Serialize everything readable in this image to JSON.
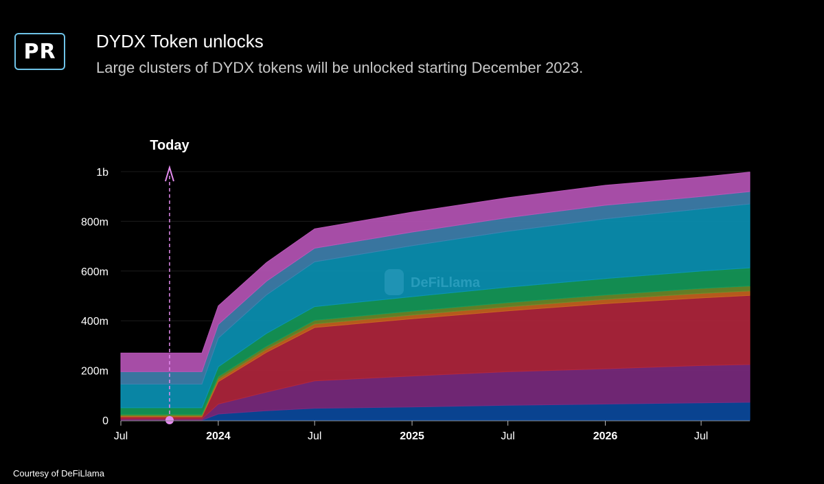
{
  "header": {
    "logo_text": "PR",
    "title": "DYDX Token unlocks",
    "subtitle": "Large clusters of DYDX tokens will be unlocked starting December 2023."
  },
  "footer": {
    "credit": "Courtesy of DeFiLlama"
  },
  "watermark": {
    "text": "DeFiLlama",
    "icon": "llama-icon"
  },
  "today_marker": {
    "label": "Today",
    "date": "2023-10-01",
    "color": "#e58cf0"
  },
  "colors": {
    "background": "#000000",
    "gridline": "#1c1c1c",
    "text": "#ffffff"
  },
  "chart_data": {
    "type": "area",
    "stacked": true,
    "x_axis": {
      "type": "date",
      "range": [
        "2023-07-01",
        "2026-10-01"
      ],
      "ticks": [
        {
          "date": "2023-07-01",
          "label": "Jul",
          "bold": false
        },
        {
          "date": "2024-01-01",
          "label": "2024",
          "bold": true
        },
        {
          "date": "2024-07-01",
          "label": "Jul",
          "bold": false
        },
        {
          "date": "2025-01-01",
          "label": "2025",
          "bold": true
        },
        {
          "date": "2025-07-01",
          "label": "Jul",
          "bold": false
        },
        {
          "date": "2026-01-01",
          "label": "2026",
          "bold": true
        },
        {
          "date": "2026-07-01",
          "label": "Jul",
          "bold": false
        }
      ]
    },
    "y_axis": {
      "range": [
        0,
        1000000000
      ],
      "ticks": [
        {
          "value": 0,
          "label": "0"
        },
        {
          "value": 200000000,
          "label": "200m"
        },
        {
          "value": 400000000,
          "label": "400m"
        },
        {
          "value": 600000000,
          "label": "600m"
        },
        {
          "value": 800000000,
          "label": "800m"
        },
        {
          "value": 1000000000,
          "label": "1b"
        }
      ]
    },
    "grid": true,
    "x": [
      "2023-07-01",
      "2023-12-01",
      "2024-01-01",
      "2024-04-01",
      "2024-07-01",
      "2025-01-01",
      "2025-07-01",
      "2026-01-01",
      "2026-07-01",
      "2026-10-01"
    ],
    "series": [
      {
        "color": "#0a4aa0",
        "values": [
          0,
          0,
          25,
          38,
          48,
          53,
          60,
          65,
          70,
          72
        ]
      },
      {
        "color": "#7b2a80",
        "values": [
          5,
          5,
          40,
          75,
          110,
          125,
          135,
          142,
          150,
          152
        ]
      },
      {
        "color": "#b3263d",
        "values": [
          8,
          8,
          90,
          160,
          215,
          230,
          245,
          262,
          272,
          278
        ]
      },
      {
        "color": "#c9641f",
        "values": [
          4,
          4,
          10,
          12,
          14,
          15,
          16,
          17,
          18,
          18
        ]
      },
      {
        "color": "#6f8b2a",
        "values": [
          6,
          6,
          10,
          12,
          15,
          16,
          17,
          18,
          20,
          20
        ]
      },
      {
        "color": "#159b5a",
        "values": [
          27,
          27,
          40,
          52,
          55,
          58,
          62,
          66,
          70,
          73
        ]
      },
      {
        "color": "#0a94b6",
        "values": [
          95,
          95,
          115,
          155,
          180,
          205,
          225,
          240,
          250,
          257
        ]
      },
      {
        "color": "#3f82b0",
        "values": [
          50,
          50,
          55,
          55,
          55,
          55,
          55,
          55,
          50,
          50
        ]
      },
      {
        "color": "#b855b8",
        "values": [
          75,
          75,
          75,
          75,
          78,
          80,
          80,
          80,
          78,
          78
        ]
      }
    ],
    "value_unit": "millions"
  }
}
